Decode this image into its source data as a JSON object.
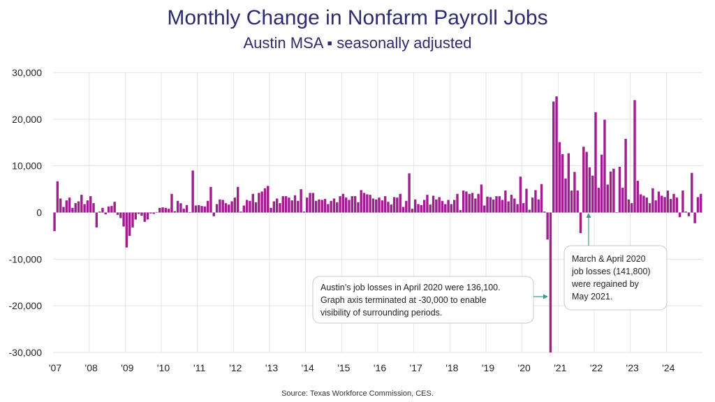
{
  "chart_data": {
    "type": "bar",
    "title": "Monthly Change in Nonfarm Payroll Jobs",
    "subtitle": "Austin MSA ▪ seasonally adjusted",
    "source": "Source: Texas Workforce Commission, CES.",
    "ylim": [
      -30000,
      30000
    ],
    "yticks": [
      30000,
      20000,
      10000,
      0,
      -10000,
      -20000,
      -30000
    ],
    "ytick_labels": [
      "30,000",
      "20,000",
      "10,000",
      "0",
      "-10,000",
      "-20,000",
      "-30,000"
    ],
    "x_start": "2007-01",
    "xtick_labels": [
      "'07",
      "'08",
      "'09",
      "'10",
      "'11",
      "'12",
      "'13",
      "'14",
      "'15",
      "'16",
      "'17",
      "'18",
      "'19",
      "'20",
      "'21",
      "'22",
      "'23",
      "'24"
    ],
    "series": [
      {
        "name": "Monthly change",
        "color": "#a01e8f",
        "values": [
          -4000,
          6700,
          3000,
          1200,
          2600,
          3200,
          1000,
          2000,
          2400,
          3800,
          1800,
          2600,
          3500,
          2000,
          -3200,
          200,
          1000,
          -400,
          1300,
          1400,
          2300,
          -500,
          -1200,
          -3000,
          -7500,
          -5000,
          -3200,
          -1500,
          -300,
          -700,
          -2000,
          -1500,
          -200,
          -300,
          100,
          1000,
          1100,
          1000,
          800,
          4000,
          300,
          2500,
          2000,
          800,
          1600,
          100,
          9000,
          1500,
          1600,
          1400,
          1300,
          2500,
          5500,
          -800,
          1800,
          2800,
          2700,
          2000,
          1700,
          2400,
          3200,
          5500,
          200,
          1500,
          2700,
          2500,
          4000,
          2200,
          4200,
          4500,
          5200,
          5700,
          1000,
          2400,
          3000,
          2000,
          3500,
          3500,
          3200,
          2600,
          3700,
          2500,
          5000,
          200,
          3200,
          4200,
          4200,
          2500,
          2800,
          2700,
          2900,
          1800,
          2500,
          3000,
          2200,
          3500,
          4000,
          3200,
          2700,
          3500,
          3500,
          2200,
          4800,
          4200,
          3900,
          3800,
          3000,
          2800,
          3200,
          2600,
          3500,
          2300,
          1700,
          3300,
          3200,
          4000,
          1200,
          2500,
          8400,
          800,
          2800,
          1800,
          1600,
          2700,
          3800,
          1700,
          3600,
          2800,
          3300,
          2500,
          1800,
          2700,
          1800,
          2700,
          4000,
          500,
          4700,
          4500,
          4000,
          4200,
          3000,
          4000,
          6000,
          1500,
          3400,
          3300,
          2800,
          3500,
          3500,
          2700,
          4700,
          2400,
          3800,
          3000,
          1800,
          7700,
          2000,
          5100,
          600,
          3200,
          4800,
          2800,
          6100,
          200,
          -5800,
          -30000,
          23800,
          24900,
          15100,
          12500,
          7300,
          12700,
          4700,
          8700,
          4700,
          -4400,
          14100,
          13000,
          9700,
          7900,
          21500,
          5300,
          12400,
          19900,
          6000,
          8800,
          9400,
          -100,
          9800,
          5300,
          15800,
          2800,
          2000,
          24100,
          6800,
          3900,
          3600,
          3200,
          2000,
          5200,
          2600,
          4500,
          3600,
          3300,
          4700,
          2900,
          4000,
          3200,
          -1000,
          4700,
          200,
          -800,
          8500,
          -2300,
          3300,
          4000
        ]
      }
    ],
    "annotations": [
      {
        "lines": [
          "Austin’s job losses in April 2020 were 136,100.",
          "Graph axis terminated at -30,000 to enable",
          "visibility of surrounding periods."
        ]
      },
      {
        "lines": [
          "March & April 2020",
          "job losses (141,800)",
          "were regained by",
          "May 2021."
        ]
      }
    ]
  }
}
